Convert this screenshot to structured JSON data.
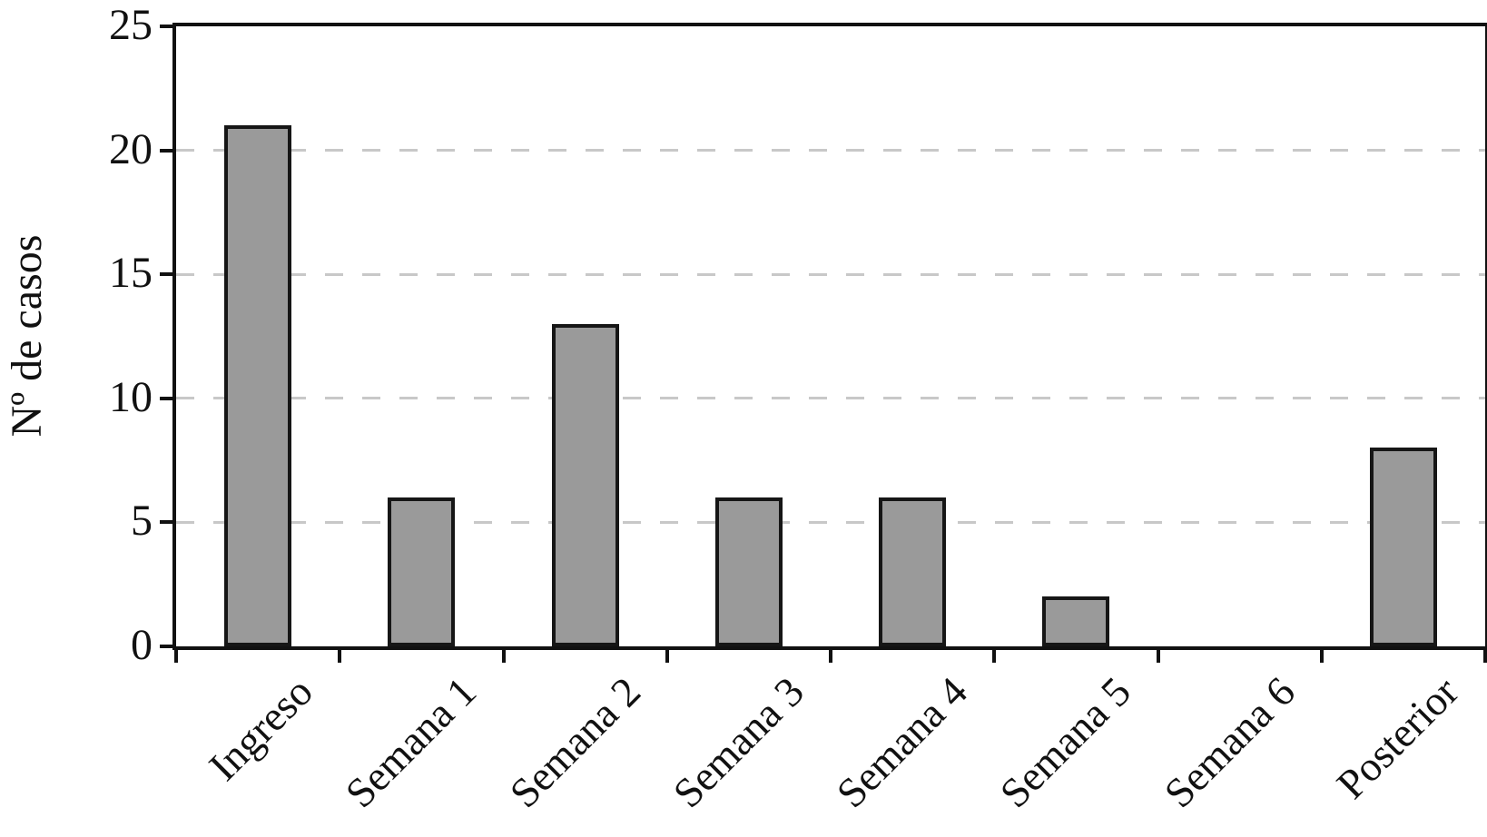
{
  "chart_data": {
    "type": "bar",
    "title": "",
    "xlabel": "",
    "ylabel": "Nº de casos",
    "categories": [
      "Ingreso",
      "Semana 1",
      "Semana 2",
      "Semana 3",
      "Semana 4",
      "Semana 5",
      "Semana 6",
      "Posterior"
    ],
    "values": [
      21,
      6,
      13,
      6,
      6,
      2,
      0,
      8
    ],
    "ylim": [
      0,
      25
    ],
    "yticks": [
      0,
      5,
      10,
      15,
      20,
      25
    ],
    "gridline_values": [
      5,
      10,
      15,
      20
    ],
    "grid_style": "horizontal-dashed",
    "legend": "none",
    "colors": {
      "bar_fill": "#9a9a9a",
      "bar_border": "#161616",
      "axis": "#111111",
      "gridline": "#c8c8c8",
      "background": "#ffffff",
      "text": "#111111"
    }
  }
}
